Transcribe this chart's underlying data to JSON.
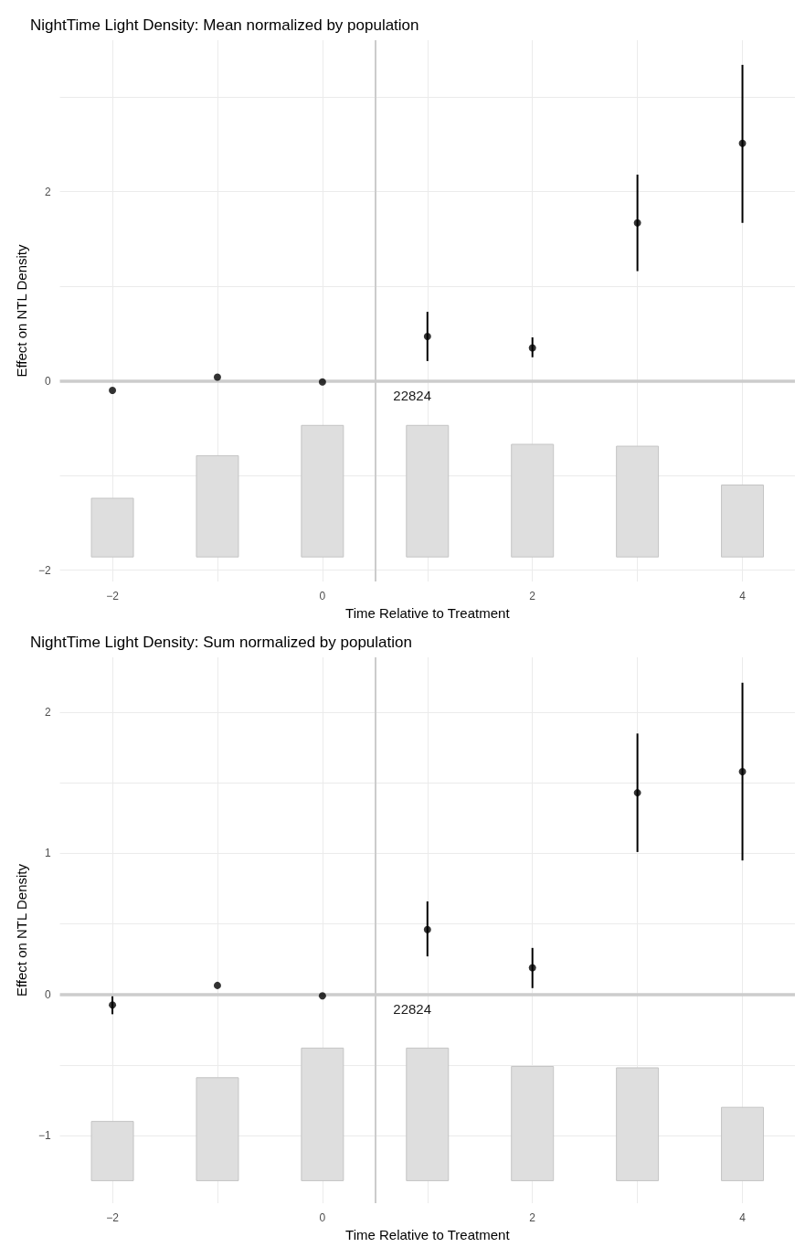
{
  "chart_data": [
    {
      "type": "scatter",
      "title": "NightTime Light Density: Mean normalized by population",
      "xlabel": "Time Relative to Treatment",
      "ylabel": "Effect on NTL Density",
      "xlim": [
        -2.5,
        4.5
      ],
      "ylim": [
        -2.12,
        3.6
      ],
      "xticks": [
        {
          "value": -2,
          "label": "−2"
        },
        {
          "value": -1,
          "label": null
        },
        0,
        {
          "value": 1,
          "label": null
        },
        2,
        {
          "value": 3,
          "label": null
        },
        4
      ],
      "yticks": [
        {
          "value": -2,
          "label": "−2"
        },
        {
          "value": -1,
          "label": null
        },
        0,
        {
          "value": 1,
          "label": null
        },
        2,
        {
          "value": 3,
          "label": null
        }
      ],
      "grid": true,
      "marker": "circle",
      "series": [
        {
          "type": "bar",
          "color": "#dedede",
          "x": [
            -2,
            -1,
            0,
            1,
            2,
            3,
            4
          ],
          "base": [
            -1.86,
            -1.86,
            -1.86,
            -1.86,
            -1.86,
            -1.86,
            -1.86
          ],
          "values": [
            0.62,
            1.07,
            1.39,
            1.39,
            1.19,
            1.17,
            0.76
          ]
        },
        {
          "color": "#000000",
          "x": [
            -2,
            -1,
            0,
            1,
            2,
            3,
            4
          ],
          "values": [
            -0.1,
            0.04,
            -0.01,
            0.47,
            0.35,
            1.67,
            2.51
          ],
          "errors": [
            null,
            null,
            null,
            [
              0.21,
              0.73
            ],
            [
              0.25,
              0.46
            ],
            [
              1.16,
              2.18
            ],
            [
              1.67,
              3.34
            ]
          ]
        }
      ],
      "ref_lines": [
        {
          "axis": "y",
          "value": 0,
          "color": "#cccccc"
        },
        {
          "axis": "x",
          "value": 0.5,
          "color": "#cccccc"
        }
      ],
      "annotations": [
        "22824"
      ]
    },
    {
      "type": "scatter",
      "title": "NightTime Light Density: Sum normalized by population",
      "xlabel": "Time Relative to Treatment",
      "ylabel": "Effect on NTL Density",
      "xlim": [
        -2.5,
        4.5
      ],
      "ylim": [
        -1.48,
        2.39
      ],
      "xticks": [
        {
          "value": -2,
          "label": "−2"
        },
        {
          "value": -1,
          "label": null
        },
        0,
        {
          "value": 1,
          "label": null
        },
        2,
        {
          "value": 3,
          "label": null
        },
        4
      ],
      "yticks": [
        {
          "value": -1,
          "label": "−1"
        },
        {
          "value": -0.5,
          "label": null
        },
        0,
        {
          "value": 0.5,
          "label": null
        },
        1,
        {
          "value": 1.5,
          "label": null
        },
        2
      ],
      "grid": true,
      "marker": "circle",
      "series": [
        {
          "type": "bar",
          "color": "#dedede",
          "x": [
            -2,
            -1,
            0,
            1,
            2,
            3,
            4
          ],
          "base": [
            -1.32,
            -1.32,
            -1.32,
            -1.32,
            -1.32,
            -1.32,
            -1.32
          ],
          "values": [
            0.42,
            0.73,
            0.94,
            0.94,
            0.81,
            0.8,
            0.52
          ]
        },
        {
          "color": "#000000",
          "x": [
            -2,
            -1,
            0,
            1,
            2,
            3,
            4
          ],
          "values": [
            -0.075,
            0.064,
            -0.01,
            0.46,
            0.19,
            1.43,
            1.58
          ],
          "errors": [
            [
              -0.14,
              -0.01
            ],
            null,
            null,
            [
              0.27,
              0.66
            ],
            [
              0.045,
              0.33
            ],
            [
              1.01,
              1.85
            ],
            [
              0.95,
              2.21
            ]
          ]
        }
      ],
      "ref_lines": [
        {
          "axis": "y",
          "value": 0,
          "color": "#cccccc"
        },
        {
          "axis": "x",
          "value": 0.5,
          "color": "#cccccc"
        }
      ],
      "annotations": [
        "22824"
      ]
    }
  ]
}
